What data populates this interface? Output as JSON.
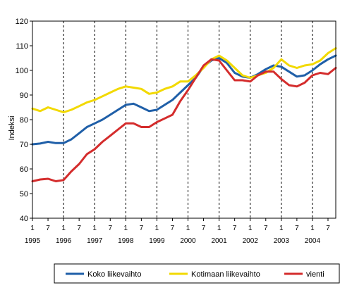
{
  "chart_data": {
    "type": "line",
    "title": "",
    "ylabel": "Indeksi",
    "xlabel": "",
    "ylim": [
      40,
      120
    ],
    "yticks": [
      40,
      50,
      60,
      70,
      80,
      90,
      100,
      110,
      120
    ],
    "x_start": 1995.0,
    "x_end": 2004.75,
    "grid": "dashed vertical lines at each year start",
    "legend_position": "bottom",
    "x_tick_labels": [
      {
        "x": 1995.0,
        "month": "1",
        "year": "1995"
      },
      {
        "x": 1995.5,
        "month": "7",
        "year": ""
      },
      {
        "x": 1996.0,
        "month": "1",
        "year": "1996"
      },
      {
        "x": 1996.5,
        "month": "7",
        "year": ""
      },
      {
        "x": 1997.0,
        "month": "1",
        "year": "1997"
      },
      {
        "x": 1997.5,
        "month": "7",
        "year": ""
      },
      {
        "x": 1998.0,
        "month": "1",
        "year": "1998"
      },
      {
        "x": 1998.5,
        "month": "7",
        "year": ""
      },
      {
        "x": 1999.0,
        "month": "1",
        "year": "1999"
      },
      {
        "x": 1999.5,
        "month": "7",
        "year": ""
      },
      {
        "x": 2000.0,
        "month": "1",
        "year": "2000"
      },
      {
        "x": 2000.5,
        "month": "7",
        "year": ""
      },
      {
        "x": 2001.0,
        "month": "1",
        "year": "2001"
      },
      {
        "x": 2001.5,
        "month": "7",
        "year": ""
      },
      {
        "x": 2002.0,
        "month": "1",
        "year": "2002"
      },
      {
        "x": 2002.5,
        "month": "7",
        "year": ""
      },
      {
        "x": 2003.0,
        "month": "1",
        "year": "2003"
      },
      {
        "x": 2003.5,
        "month": "7",
        "year": ""
      },
      {
        "x": 2004.0,
        "month": "1",
        "year": "2004"
      },
      {
        "x": 2004.5,
        "month": "7",
        "year": ""
      }
    ],
    "series": [
      {
        "name": "Koko liikevaihto",
        "color": "#1f5fa8",
        "points": [
          [
            1995.0,
            70.0
          ],
          [
            1995.25,
            70.3
          ],
          [
            1995.5,
            71.0
          ],
          [
            1995.75,
            70.5
          ],
          [
            1996.0,
            70.5
          ],
          [
            1996.25,
            72.0
          ],
          [
            1996.5,
            74.5
          ],
          [
            1996.75,
            77.0
          ],
          [
            1997.0,
            78.5
          ],
          [
            1997.25,
            80.0
          ],
          [
            1997.5,
            82.0
          ],
          [
            1997.75,
            84.0
          ],
          [
            1998.0,
            86.0
          ],
          [
            1998.25,
            86.5
          ],
          [
            1998.5,
            85.0
          ],
          [
            1998.75,
            83.5
          ],
          [
            1999.0,
            84.0
          ],
          [
            1999.25,
            86.0
          ],
          [
            1999.5,
            88.0
          ],
          [
            1999.75,
            91.0
          ],
          [
            2000.0,
            94.0
          ],
          [
            2000.25,
            97.0
          ],
          [
            2000.5,
            101.5
          ],
          [
            2000.75,
            104.0
          ],
          [
            2001.0,
            105.0
          ],
          [
            2001.25,
            103.0
          ],
          [
            2001.5,
            99.0
          ],
          [
            2001.75,
            97.5
          ],
          [
            2002.0,
            97.0
          ],
          [
            2002.25,
            98.5
          ],
          [
            2002.5,
            100.5
          ],
          [
            2002.75,
            102.0
          ],
          [
            2003.0,
            101.5
          ],
          [
            2003.25,
            99.5
          ],
          [
            2003.5,
            97.5
          ],
          [
            2003.75,
            98.0
          ],
          [
            2004.0,
            100.0
          ],
          [
            2004.25,
            102.5
          ],
          [
            2004.5,
            104.5
          ],
          [
            2004.75,
            106.0
          ]
        ]
      },
      {
        "name": "Kotimaan liikevaihto",
        "color": "#f2d900",
        "points": [
          [
            1995.0,
            84.5
          ],
          [
            1995.25,
            83.5
          ],
          [
            1995.5,
            85.0
          ],
          [
            1995.75,
            84.0
          ],
          [
            1996.0,
            83.0
          ],
          [
            1996.25,
            84.0
          ],
          [
            1996.5,
            85.5
          ],
          [
            1996.75,
            87.0
          ],
          [
            1997.0,
            88.0
          ],
          [
            1997.25,
            89.5
          ],
          [
            1997.5,
            91.0
          ],
          [
            1997.75,
            92.5
          ],
          [
            1998.0,
            93.5
          ],
          [
            1998.25,
            93.0
          ],
          [
            1998.5,
            92.5
          ],
          [
            1998.75,
            90.5
          ],
          [
            1999.0,
            91.0
          ],
          [
            1999.25,
            92.5
          ],
          [
            1999.5,
            93.5
          ],
          [
            1999.75,
            95.5
          ],
          [
            2000.0,
            95.5
          ],
          [
            2000.25,
            98.0
          ],
          [
            2000.5,
            101.0
          ],
          [
            2000.75,
            104.5
          ],
          [
            2001.0,
            106.0
          ],
          [
            2001.25,
            104.0
          ],
          [
            2001.5,
            101.0
          ],
          [
            2001.75,
            98.0
          ],
          [
            2002.0,
            97.0
          ],
          [
            2002.25,
            98.0
          ],
          [
            2002.5,
            99.0
          ],
          [
            2002.75,
            101.0
          ],
          [
            2003.0,
            104.5
          ],
          [
            2003.25,
            102.0
          ],
          [
            2003.5,
            101.0
          ],
          [
            2003.75,
            102.0
          ],
          [
            2004.0,
            102.5
          ],
          [
            2004.25,
            104.0
          ],
          [
            2004.5,
            107.0
          ],
          [
            2004.75,
            109.0
          ]
        ]
      },
      {
        "name": "vienti",
        "color": "#d42c2c",
        "points": [
          [
            1995.0,
            55.0
          ],
          [
            1995.25,
            55.7
          ],
          [
            1995.5,
            56.0
          ],
          [
            1995.75,
            55.0
          ],
          [
            1996.0,
            55.5
          ],
          [
            1996.25,
            59.0
          ],
          [
            1996.5,
            62.0
          ],
          [
            1996.75,
            66.0
          ],
          [
            1997.0,
            68.0
          ],
          [
            1997.25,
            71.0
          ],
          [
            1997.5,
            73.5
          ],
          [
            1997.75,
            76.0
          ],
          [
            1998.0,
            78.5
          ],
          [
            1998.25,
            78.5
          ],
          [
            1998.5,
            77.0
          ],
          [
            1998.75,
            77.0
          ],
          [
            1999.0,
            79.0
          ],
          [
            1999.25,
            80.5
          ],
          [
            1999.5,
            82.0
          ],
          [
            1999.75,
            87.5
          ],
          [
            2000.0,
            92.0
          ],
          [
            2000.25,
            97.0
          ],
          [
            2000.5,
            102.0
          ],
          [
            2000.75,
            104.5
          ],
          [
            2001.0,
            104.0
          ],
          [
            2001.25,
            100.0
          ],
          [
            2001.5,
            96.0
          ],
          [
            2001.75,
            96.0
          ],
          [
            2002.0,
            95.5
          ],
          [
            2002.25,
            98.0
          ],
          [
            2002.5,
            99.5
          ],
          [
            2002.75,
            99.5
          ],
          [
            2003.0,
            96.5
          ],
          [
            2003.25,
            94.0
          ],
          [
            2003.5,
            93.5
          ],
          [
            2003.75,
            95.0
          ],
          [
            2004.0,
            98.0
          ],
          [
            2004.25,
            99.0
          ],
          [
            2004.5,
            98.5
          ],
          [
            2004.75,
            101.0
          ]
        ]
      }
    ]
  }
}
